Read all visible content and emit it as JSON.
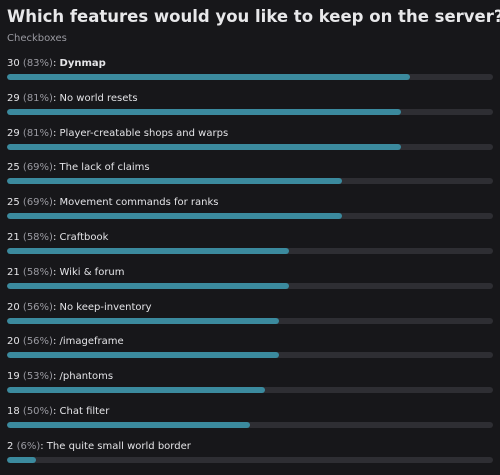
{
  "poll": {
    "title": "Which features would you like to keep on the server?",
    "subtitle": "Checkboxes",
    "accent_color": "#3b8a9e",
    "track_color": "#2e2e33",
    "options": [
      {
        "count": "30",
        "percent_text": "(83%)",
        "percent": 83,
        "label": "Dynmap",
        "winner": true
      },
      {
        "count": "29",
        "percent_text": "(81%)",
        "percent": 81,
        "label": "No world resets",
        "winner": false
      },
      {
        "count": "29",
        "percent_text": "(81%)",
        "percent": 81,
        "label": "Player-creatable shops and warps",
        "winner": false
      },
      {
        "count": "25",
        "percent_text": "(69%)",
        "percent": 69,
        "label": "The lack of claims",
        "winner": false
      },
      {
        "count": "25",
        "percent_text": "(69%)",
        "percent": 69,
        "label": "Movement commands for ranks",
        "winner": false
      },
      {
        "count": "21",
        "percent_text": "(58%)",
        "percent": 58,
        "label": "Craftbook",
        "winner": false
      },
      {
        "count": "21",
        "percent_text": "(58%)",
        "percent": 58,
        "label": "Wiki & forum",
        "winner": false
      },
      {
        "count": "20",
        "percent_text": "(56%)",
        "percent": 56,
        "label": "No keep-inventory",
        "winner": false
      },
      {
        "count": "20",
        "percent_text": "(56%)",
        "percent": 56,
        "label": "/imageframe",
        "winner": false
      },
      {
        "count": "19",
        "percent_text": "(53%)",
        "percent": 53,
        "label": "/phantoms",
        "winner": false
      },
      {
        "count": "18",
        "percent_text": "(50%)",
        "percent": 50,
        "label": "Chat filter",
        "winner": false
      },
      {
        "count": "2",
        "percent_text": "(6%)",
        "percent": 6,
        "label": "The quite small world border",
        "winner": false
      }
    ]
  }
}
